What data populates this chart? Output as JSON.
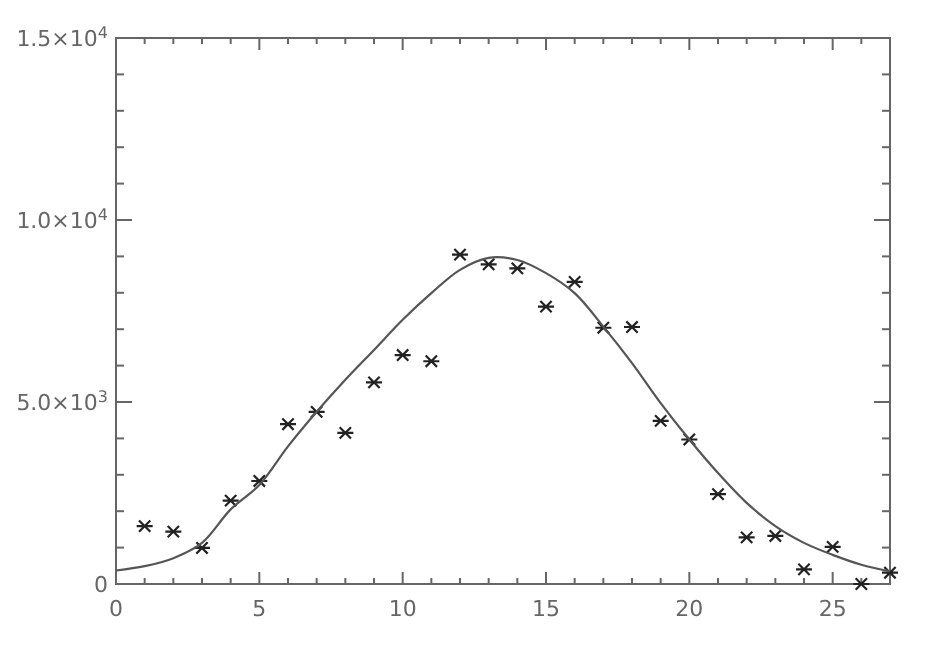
{
  "chart_data": {
    "type": "scatter",
    "xlim": [
      0,
      27
    ],
    "ylim": [
      0,
      15000
    ],
    "xticks": [
      0,
      {
        "value": 1,
        "label": null
      },
      {
        "value": 2,
        "label": null
      },
      {
        "value": 3,
        "label": null
      },
      {
        "value": 4,
        "label": null
      },
      5,
      {
        "value": 6,
        "label": null
      },
      {
        "value": 7,
        "label": null
      },
      {
        "value": 8,
        "label": null
      },
      {
        "value": 9,
        "label": null
      },
      10,
      {
        "value": 11,
        "label": null
      },
      {
        "value": 12,
        "label": null
      },
      {
        "value": 13,
        "label": null
      },
      {
        "value": 14,
        "label": null
      },
      15,
      {
        "value": 16,
        "label": null
      },
      {
        "value": 17,
        "label": null
      },
      {
        "value": 18,
        "label": null
      },
      {
        "value": 19,
        "label": null
      },
      20,
      {
        "value": 21,
        "label": null
      },
      {
        "value": 22,
        "label": null
      },
      {
        "value": 23,
        "label": null
      },
      {
        "value": 24,
        "label": null
      },
      25,
      {
        "value": 26,
        "label": null
      }
    ],
    "yticks": [
      0,
      {
        "value": 1000,
        "label": null
      },
      {
        "value": 2000,
        "label": null
      },
      {
        "value": 3000,
        "label": null
      },
      {
        "value": 4000,
        "label": null
      },
      {
        "value": 5000,
        "label": "5.0×10$^{3}$"
      },
      {
        "value": 6000,
        "label": null
      },
      {
        "value": 7000,
        "label": null
      },
      {
        "value": 8000,
        "label": null
      },
      {
        "value": 9000,
        "label": null
      },
      {
        "value": 10000,
        "label": "1.0×10$^{4}$"
      },
      {
        "value": 11000,
        "label": null
      },
      {
        "value": 12000,
        "label": null
      },
      {
        "value": 13000,
        "label": null
      },
      {
        "value": 14000,
        "label": null
      },
      {
        "value": 15000,
        "label": "1.5×10$^{4}$"
      }
    ],
    "grid": false,
    "series": [
      {
        "marker": "cross",
        "color": "#222222",
        "x": [
          1,
          2,
          3,
          4,
          5,
          6,
          7,
          8,
          9,
          10,
          11,
          12,
          13,
          14,
          15,
          16,
          17,
          18,
          19,
          20,
          21,
          22,
          23,
          24,
          25,
          26,
          27
        ],
        "values": [
          1590,
          1440,
          990,
          2290,
          2830,
          4390,
          4730,
          4150,
          5540,
          6290,
          6120,
          9050,
          8780,
          8670,
          7620,
          8300,
          7040,
          7060,
          4480,
          3970,
          2470,
          1280,
          1320,
          400,
          1020,
          0,
          310
        ]
      },
      {
        "type": "line",
        "marker": "none",
        "line_style": "solid",
        "color": "#555555",
        "x": [
          0,
          1,
          2,
          3,
          4,
          5,
          6,
          7,
          8,
          9,
          10,
          11,
          12,
          13,
          14,
          15,
          16,
          17,
          18,
          19,
          20,
          21,
          22,
          23,
          24,
          25,
          26,
          27
        ],
        "values": [
          370,
          490,
          710,
          1130,
          2050,
          2720,
          3780,
          4730,
          5610,
          6430,
          7260,
          7990,
          8630,
          8960,
          8900,
          8540,
          7990,
          7070,
          6070,
          4970,
          3970,
          3050,
          2230,
          1590,
          1130,
          800,
          530,
          350
        ]
      }
    ]
  }
}
